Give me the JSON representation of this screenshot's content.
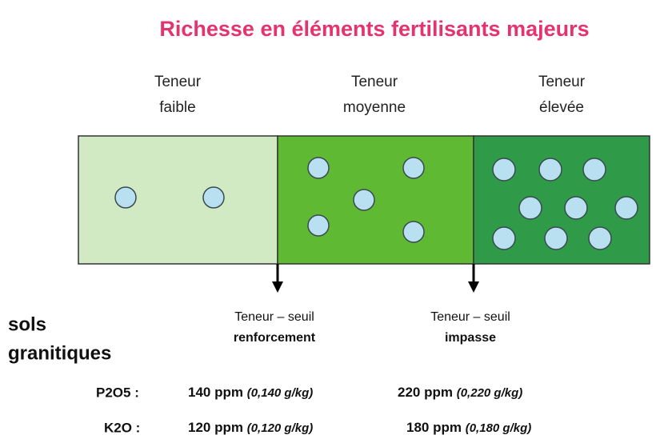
{
  "title": "Richesse en éléments fertilisants majeurs",
  "columns": [
    {
      "lines": [
        "Teneur",
        "faible"
      ]
    },
    {
      "lines": [
        "Teneur",
        "moyenne"
      ]
    },
    {
      "lines": [
        "Teneur",
        "élevée"
      ]
    }
  ],
  "thresholds": [
    {
      "lines": [
        "Teneur – seuil",
        "renforcement"
      ]
    },
    {
      "lines": [
        "Teneur – seuil",
        "impasse"
      ]
    }
  ],
  "soil": [
    "sols",
    "granitiques"
  ],
  "rows": [
    {
      "label": "P2O5 :",
      "values": [
        {
          "ppm": "140 ppm",
          "gkg": "(0,140 g/kg)"
        },
        {
          "ppm": "220 ppm",
          "gkg": "(0,220 g/kg)"
        }
      ]
    },
    {
      "label": "K2O :",
      "values": [
        {
          "ppm": "120 ppm",
          "gkg": "(0,120 g/kg)"
        },
        {
          "ppm": "180 ppm",
          "gkg": "(0,180 g/kg)"
        }
      ]
    }
  ]
}
